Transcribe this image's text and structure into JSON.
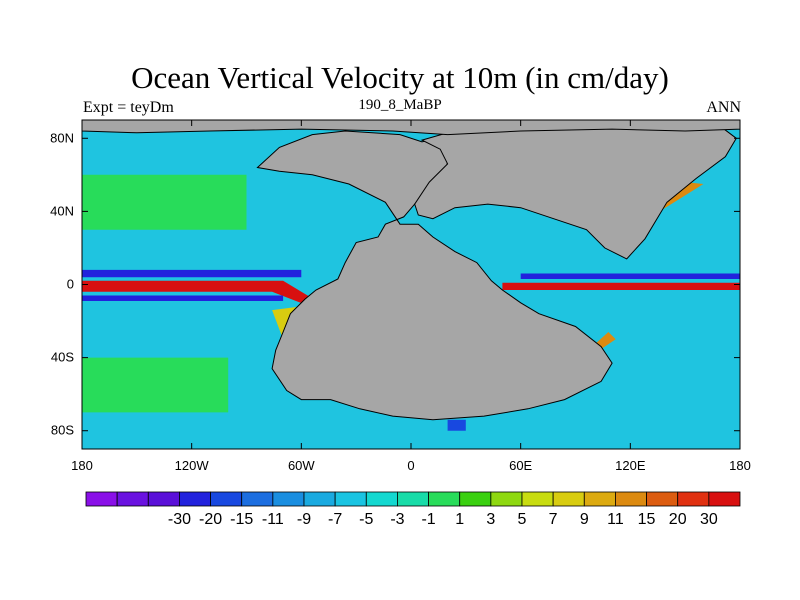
{
  "chart_data": {
    "type": "heatmap",
    "title": "Ocean Vertical Velocity at 10m (in cm/day)",
    "left_label": "Expt = teyDm",
    "center_label": "190_8_MaBP",
    "right_label": "ANN",
    "x_ticks": [
      {
        "value": -180,
        "label": "180"
      },
      {
        "value": -120,
        "label": "120W"
      },
      {
        "value": -60,
        "label": "60W"
      },
      {
        "value": 0,
        "label": "0"
      },
      {
        "value": 60,
        "label": "60E"
      },
      {
        "value": 120,
        "label": "120E"
      },
      {
        "value": 180,
        "label": "180"
      }
    ],
    "y_ticks": [
      {
        "value": 80,
        "label": "80N"
      },
      {
        "value": 40,
        "label": "40N"
      },
      {
        "value": 0,
        "label": "0"
      },
      {
        "value": -40,
        "label": "40S"
      },
      {
        "value": -80,
        "label": "80S"
      }
    ],
    "xlim": [
      -180,
      180
    ],
    "ylim": [
      -90,
      90
    ],
    "land_color": "#a6a6a6",
    "colorbar": {
      "colors": [
        "#8a10e8",
        "#6a12e0",
        "#5a10d8",
        "#2222dd",
        "#1848e0",
        "#1c6ee0",
        "#1a8ee0",
        "#1aaae0",
        "#1ac4e2",
        "#14d8d0",
        "#18dca8",
        "#28dc5a",
        "#3ad010",
        "#8ed810",
        "#c8dc10",
        "#d8cc10",
        "#dcaa10",
        "#dc8a10",
        "#dc5c10",
        "#e03010",
        "#d81010"
      ],
      "labels": [
        "-30",
        "-20",
        "-15",
        "-11",
        "-9",
        "-7",
        "-5",
        "-3",
        "-1",
        "1",
        "3",
        "5",
        "7",
        "9",
        "11",
        "15",
        "20",
        "30"
      ]
    },
    "continents": [
      {
        "name": "pangaea-west",
        "points": [
          [
            -84,
            64
          ],
          [
            -72,
            75
          ],
          [
            -54,
            82
          ],
          [
            -36,
            84
          ],
          [
            -6,
            82
          ],
          [
            6,
            78
          ],
          [
            14,
            80
          ],
          [
            22,
            76
          ],
          [
            18,
            58
          ],
          [
            2,
            44
          ],
          [
            -4,
            37
          ],
          [
            -14,
            33
          ],
          [
            -18,
            26
          ],
          [
            -30,
            23
          ],
          [
            -36,
            12
          ],
          [
            -40,
            3
          ],
          [
            -52,
            -3
          ],
          [
            -58,
            -8
          ],
          [
            -66,
            -16
          ],
          [
            -70,
            -26
          ],
          [
            -74,
            -36
          ],
          [
            -76,
            -46
          ],
          [
            -68,
            -58
          ],
          [
            -60,
            -63
          ],
          [
            -44,
            -63
          ],
          [
            -28,
            -68
          ],
          [
            -10,
            -72
          ],
          [
            12,
            -74
          ],
          [
            40,
            -72
          ],
          [
            64,
            -68
          ],
          [
            84,
            -63
          ],
          [
            104,
            -53
          ],
          [
            110,
            -43
          ],
          [
            104,
            -34
          ],
          [
            90,
            -23
          ],
          [
            70,
            -16
          ],
          [
            60,
            -10
          ],
          [
            50,
            -3
          ],
          [
            44,
            2
          ],
          [
            36,
            12
          ],
          [
            24,
            18
          ],
          [
            12,
            26
          ],
          [
            4,
            33
          ],
          [
            -6,
            33
          ],
          [
            -14,
            45
          ],
          [
            -34,
            55
          ],
          [
            -54,
            60
          ],
          [
            -72,
            62
          ]
        ]
      },
      {
        "name": "pangaea-east",
        "points": [
          [
            6,
            79
          ],
          [
            20,
            83
          ],
          [
            60,
            85
          ],
          [
            100,
            87
          ],
          [
            140,
            87
          ],
          [
            170,
            86
          ],
          [
            178,
            80
          ],
          [
            172,
            70
          ],
          [
            156,
            58
          ],
          [
            140,
            45
          ],
          [
            128,
            25
          ],
          [
            118,
            14
          ],
          [
            106,
            20
          ],
          [
            96,
            30
          ],
          [
            78,
            36
          ],
          [
            60,
            42
          ],
          [
            42,
            44
          ],
          [
            24,
            42
          ],
          [
            12,
            36
          ],
          [
            4,
            38
          ],
          [
            2,
            44
          ],
          [
            10,
            56
          ],
          [
            20,
            66
          ],
          [
            16,
            74
          ]
        ]
      },
      {
        "name": "pangaea-north-cap",
        "points": [
          [
            -180,
            90
          ],
          [
            180,
            90
          ],
          [
            180,
            85
          ],
          [
            150,
            84
          ],
          [
            110,
            85
          ],
          [
            60,
            84
          ],
          [
            20,
            82
          ],
          [
            -10,
            84
          ],
          [
            -60,
            85
          ],
          [
            -110,
            84
          ],
          [
            -150,
            83
          ],
          [
            -180,
            84
          ]
        ]
      }
    ],
    "field_features": [
      {
        "name": "equatorial-upwelling-west",
        "color_index": 20,
        "points": [
          [
            -180,
            2
          ],
          [
            -70,
            2
          ],
          [
            -50,
            -10
          ],
          [
            -50,
            -14
          ],
          [
            -76,
            -4
          ],
          [
            -180,
            -4
          ]
        ]
      },
      {
        "name": "equatorial-upwelling-east",
        "color_index": 20,
        "points": [
          [
            50,
            1
          ],
          [
            180,
            1
          ],
          [
            180,
            -3
          ],
          [
            50,
            -3
          ]
        ]
      },
      {
        "name": "equatorial-downwelling-north",
        "color_index": 3,
        "points": [
          [
            -180,
            8
          ],
          [
            -60,
            8
          ],
          [
            -60,
            4
          ],
          [
            -180,
            4
          ]
        ]
      },
      {
        "name": "equatorial-downwelling-south",
        "color_index": 3,
        "points": [
          [
            -180,
            -6
          ],
          [
            -70,
            -6
          ],
          [
            -70,
            -9
          ],
          [
            -180,
            -9
          ]
        ]
      },
      {
        "name": "equatorial-downwelling-east-north",
        "color_index": 3,
        "points": [
          [
            60,
            6
          ],
          [
            180,
            6
          ],
          [
            180,
            3
          ],
          [
            60,
            3
          ]
        ]
      },
      {
        "name": "subtropical-band-north",
        "color_index": 11,
        "points": [
          [
            -180,
            60
          ],
          [
            -90,
            60
          ],
          [
            -90,
            30
          ],
          [
            -180,
            30
          ]
        ]
      },
      {
        "name": "subtropical-band-south",
        "color_index": 11,
        "points": [
          [
            -180,
            -40
          ],
          [
            -100,
            -40
          ],
          [
            -100,
            -70
          ],
          [
            -180,
            -70
          ]
        ]
      },
      {
        "name": "east-upwelling-band",
        "color_index": 17,
        "points": [
          [
            100,
            -38
          ],
          [
            112,
            -30
          ],
          [
            108,
            -26
          ],
          [
            98,
            -35
          ]
        ]
      },
      {
        "name": "northeast-upwelling-band",
        "color_index": 17,
        "points": [
          [
            118,
            25
          ],
          [
            128,
            35
          ],
          [
            160,
            55
          ],
          [
            150,
            56
          ],
          [
            122,
            32
          ]
        ]
      },
      {
        "name": "west-coast-upwelling",
        "color_index": 15,
        "points": [
          [
            -76,
            -14
          ],
          [
            -60,
            -12
          ],
          [
            -52,
            -30
          ],
          [
            -56,
            -46
          ],
          [
            -64,
            -44
          ],
          [
            -70,
            -30
          ]
        ]
      },
      {
        "name": "south-pole-downwelling",
        "color_index": 4,
        "points": [
          [
            20,
            -74
          ],
          [
            30,
            -74
          ],
          [
            30,
            -80
          ],
          [
            20,
            -80
          ]
        ]
      }
    ]
  }
}
